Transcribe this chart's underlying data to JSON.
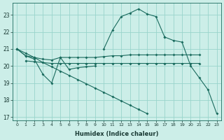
{
  "xlabel": "Humidex (Indice chaleur)",
  "background_color": "#cceee8",
  "grid_color": "#99d4cc",
  "line_color": "#1a6b5e",
  "ylim": [
    16.8,
    23.7
  ],
  "yticks": [
    17,
    18,
    19,
    20,
    21,
    22,
    23
  ],
  "xlim": [
    -0.5,
    23.5
  ],
  "series_peak": {
    "x": [
      0,
      1,
      2,
      3,
      4,
      5,
      6,
      7,
      8,
      9,
      10,
      11,
      12,
      13,
      14,
      15,
      16,
      17,
      18,
      19,
      20,
      21,
      22,
      23
    ],
    "y": [
      21.0,
      20.6,
      null,
      null,
      null,
      null,
      null,
      null,
      null,
      null,
      21.0,
      22.1,
      22.9,
      23.1,
      23.35,
      23.05,
      22.9,
      21.7,
      null,
      null,
      null,
      null,
      null,
      null
    ]
  },
  "series_flat_high": {
    "x": [
      0,
      1,
      2,
      3,
      4,
      5,
      6,
      7,
      8,
      9,
      10,
      11,
      12,
      13,
      14,
      15,
      16,
      17,
      18,
      19,
      20,
      21
    ],
    "y": [
      21.0,
      20.6,
      20.5,
      20.4,
      20.35,
      20.5,
      20.5,
      20.5,
      20.5,
      20.5,
      20.55,
      20.6,
      20.6,
      20.65,
      20.65,
      20.65,
      20.65,
      20.65,
      20.65,
      20.65,
      20.65,
      20.65
    ]
  },
  "series_flat_mid": {
    "x": [
      1,
      2,
      3,
      4,
      5,
      6,
      7,
      8,
      9,
      10,
      11,
      12,
      13,
      14,
      15,
      16,
      17,
      18,
      19,
      20,
      21
    ],
    "y": [
      20.3,
      20.25,
      20.2,
      20.15,
      20.15,
      20.15,
      20.15,
      20.15,
      20.15,
      20.15,
      20.15,
      20.15,
      20.15,
      20.15,
      20.15,
      20.15,
      20.15,
      20.15,
      20.15,
      20.15,
      20.15
    ]
  },
  "series_wavy": {
    "x": [
      1,
      2,
      3,
      4,
      5,
      6,
      7,
      8,
      9
    ],
    "y": [
      20.6,
      20.4,
      19.5,
      19.0,
      20.5,
      19.8,
      19.9,
      19.95,
      20.0
    ]
  },
  "series_diagonal": {
    "x": [
      0,
      1,
      2,
      3,
      4,
      5,
      6,
      7,
      8,
      9,
      10,
      11,
      12,
      13,
      14,
      15,
      16,
      17,
      18,
      19,
      20,
      21,
      22,
      23
    ],
    "y": [
      21.0,
      20.75,
      20.5,
      20.2,
      19.95,
      19.7,
      19.45,
      19.2,
      18.95,
      18.7,
      18.45,
      18.2,
      17.95,
      17.7,
      17.45,
      17.2,
      null,
      null,
      null,
      null,
      null,
      null,
      null,
      null
    ]
  },
  "series_right_drop": {
    "x": [
      17,
      18,
      19,
      20,
      21,
      22,
      23
    ],
    "y": [
      21.7,
      21.5,
      21.4,
      20.0,
      19.3,
      18.6,
      17.2
    ]
  }
}
